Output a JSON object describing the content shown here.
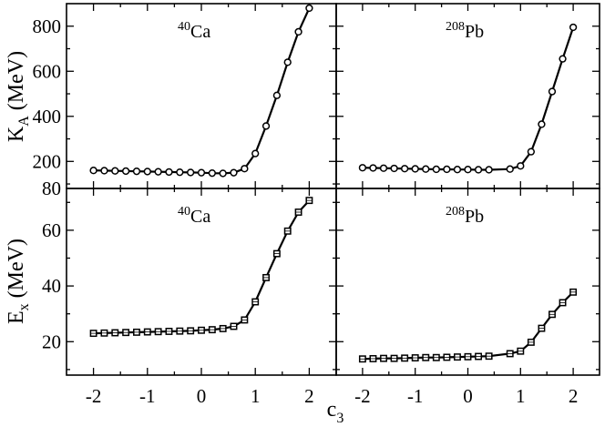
{
  "chart_data": [
    {
      "type": "line",
      "panel": "top-left",
      "label_sup": "40",
      "label_main": "Ca",
      "x": [
        -2.0,
        -1.8,
        -1.6,
        -1.4,
        -1.2,
        -1.0,
        -0.8,
        -0.6,
        -0.4,
        -0.2,
        0.0,
        0.2,
        0.4,
        0.6,
        0.8,
        1.0,
        1.2,
        1.4,
        1.6,
        1.8,
        2.0
      ],
      "values": [
        160,
        159,
        158,
        157,
        156,
        155,
        154,
        153,
        152,
        151,
        150,
        148,
        147,
        150,
        168,
        235,
        357,
        493,
        640,
        775,
        880
      ],
      "xlim": [
        -2.5,
        2.5
      ],
      "ylim": [
        80,
        900
      ],
      "marker": "circle"
    },
    {
      "type": "line",
      "panel": "top-right",
      "label_sup": "208",
      "label_main": "Pb",
      "x": [
        -2.0,
        -1.8,
        -1.6,
        -1.4,
        -1.2,
        -1.0,
        -0.8,
        -0.6,
        -0.4,
        -0.2,
        0.0,
        0.2,
        0.4,
        0.8,
        1.0,
        1.2,
        1.4,
        1.6,
        1.8,
        2.0
      ],
      "values": [
        172,
        171,
        170,
        169,
        168,
        167,
        166,
        165,
        165,
        164,
        164,
        163,
        163,
        166,
        180,
        243,
        365,
        510,
        655,
        795
      ],
      "xlim": [
        -2.5,
        2.5
      ],
      "ylim": [
        80,
        900
      ],
      "marker": "circle"
    },
    {
      "type": "line",
      "panel": "bottom-left",
      "label_sup": "40",
      "label_main": "Ca",
      "x": [
        -2.0,
        -1.8,
        -1.6,
        -1.4,
        -1.2,
        -1.0,
        -0.8,
        -0.6,
        -0.4,
        -0.2,
        0.0,
        0.2,
        0.4,
        0.6,
        0.8,
        1.0,
        1.2,
        1.4,
        1.6,
        1.8,
        2.0
      ],
      "values": [
        23.0,
        23.1,
        23.2,
        23.3,
        23.4,
        23.5,
        23.6,
        23.7,
        23.8,
        23.9,
        24.1,
        24.3,
        24.7,
        25.5,
        27.8,
        34.3,
        43.0,
        51.6,
        59.7,
        66.5,
        70.7
      ],
      "xlim": [
        -2.5,
        2.5
      ],
      "ylim": [
        8,
        75
      ],
      "marker": "square"
    },
    {
      "type": "line",
      "panel": "bottom-right",
      "label_sup": "208",
      "label_main": "Pb",
      "x": [
        -2.0,
        -1.8,
        -1.6,
        -1.4,
        -1.2,
        -1.0,
        -0.8,
        -0.6,
        -0.4,
        -0.2,
        0.0,
        0.2,
        0.4,
        0.8,
        1.0,
        1.2,
        1.4,
        1.6,
        1.8,
        2.0
      ],
      "values": [
        13.8,
        13.9,
        14.0,
        14.0,
        14.1,
        14.2,
        14.3,
        14.3,
        14.4,
        14.5,
        14.6,
        14.7,
        14.8,
        15.7,
        16.6,
        19.8,
        24.8,
        29.8,
        34.0,
        37.8
      ],
      "xlim": [
        -2.5,
        2.5
      ],
      "ylim": [
        8,
        75
      ],
      "marker": "square"
    }
  ],
  "axes": {
    "x_label_main": "c",
    "x_label_sub": "3",
    "top_y_label_main": "K",
    "top_y_label_sub": "A",
    "top_y_label_unit": " (MeV)",
    "bottom_y_label_main": "E",
    "bottom_y_label_sub": "x",
    "bottom_y_label_unit": " (MeV)",
    "x_ticks": [
      -2,
      -1,
      0,
      1,
      2
    ],
    "top_y_ticks": [
      80,
      200,
      400,
      600,
      800
    ],
    "bottom_y_ticks": [
      20,
      40,
      60
    ],
    "grid": false
  }
}
